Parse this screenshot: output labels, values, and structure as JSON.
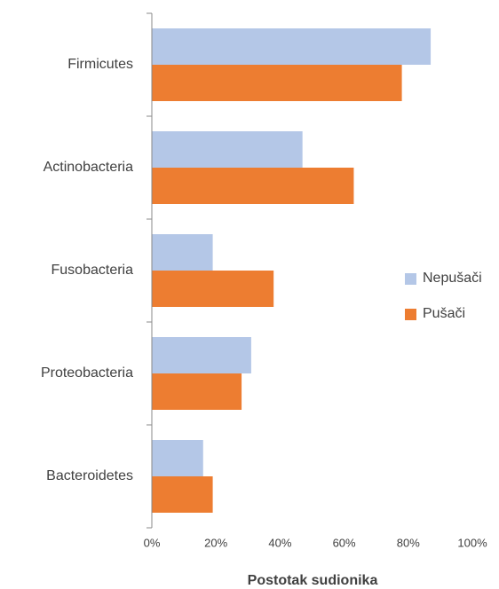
{
  "chart_data": {
    "type": "hbar",
    "categories": [
      "Firmicutes",
      "Actinobacteria",
      "Fusobacteria",
      "Proteobacteria",
      "Bacteroidetes"
    ],
    "series": [
      {
        "name": "Nepušači",
        "color": "#b4c7e7",
        "values": [
          87,
          47,
          19,
          31,
          16
        ]
      },
      {
        "name": "Pušači",
        "color": "#ed7d31",
        "values": [
          78,
          63,
          38,
          28,
          19
        ]
      }
    ],
    "xlabel": "Postotak sudionika",
    "xlim": [
      0,
      100
    ],
    "xticks": [
      {
        "value": 0,
        "label": "0%"
      },
      {
        "value": 20,
        "label": "20%"
      },
      {
        "value": 40,
        "label": "40%"
      },
      {
        "value": 60,
        "label": "60%"
      },
      {
        "value": 80,
        "label": "80%"
      },
      {
        "value": 100,
        "label": "100%"
      }
    ],
    "legend": "right"
  }
}
